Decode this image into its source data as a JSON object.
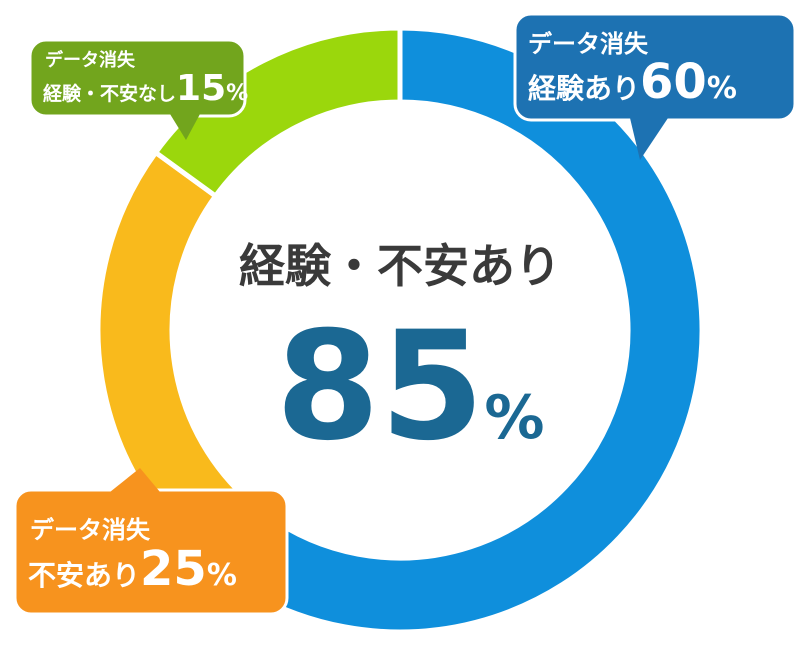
{
  "chart_data": {
    "type": "donut",
    "center_title": "経験・不安あり",
    "center_value": 85,
    "unit": "%",
    "category_prefix": "データ消失",
    "categories": [
      "経験あり",
      "不安あり",
      "経験・不安なし"
    ],
    "values": [
      60,
      25,
      15
    ],
    "colors": [
      "#0f8fdc",
      "#f9ba1c",
      "#9bd70c"
    ],
    "label_colors": [
      "#1d72b2",
      "#f7931e",
      "#72a51d"
    ]
  }
}
